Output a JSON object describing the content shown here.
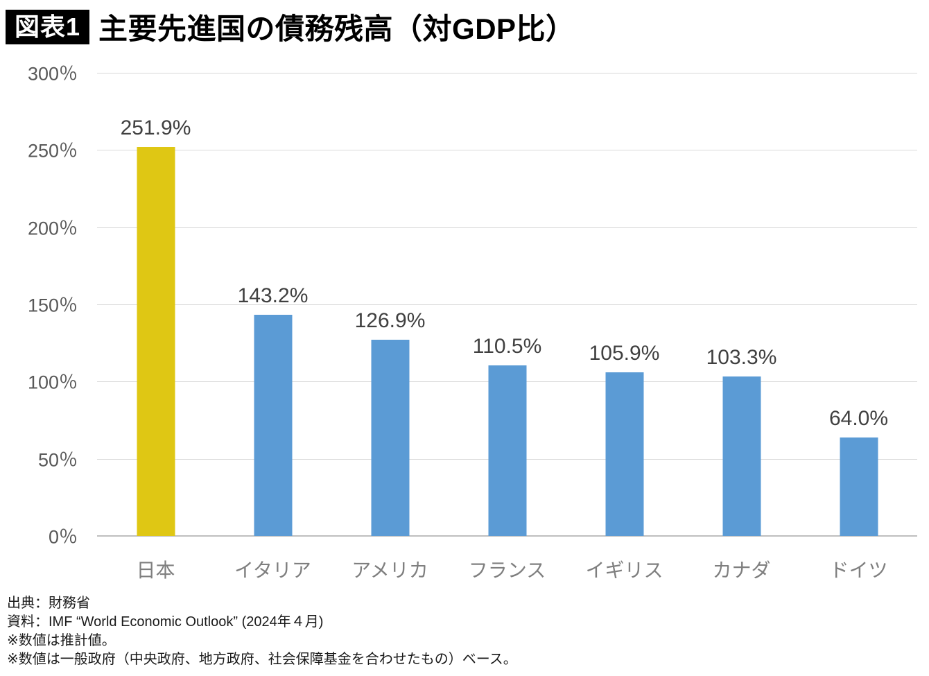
{
  "header": {
    "badge": "図表1",
    "title": "主要先進国の債務残高（対GDP比）"
  },
  "chart_data": {
    "type": "bar",
    "title": "主要先進国の債務残高（対GDP比）",
    "categories": [
      "日本",
      "イタリア",
      "アメリカ",
      "フランス",
      "イギリス",
      "カナダ",
      "ドイツ"
    ],
    "values": [
      251.9,
      143.2,
      126.9,
      110.5,
      105.9,
      103.3,
      64.0
    ],
    "value_labels": [
      "251.9%",
      "143.2%",
      "126.9%",
      "110.5%",
      "105.9%",
      "103.3%",
      "64.0%"
    ],
    "bar_colors": [
      "#DFC714",
      "#5B9BD5",
      "#5B9BD5",
      "#5B9BD5",
      "#5B9BD5",
      "#5B9BD5",
      "#5B9BD5"
    ],
    "highlight_color": "#DFC714",
    "default_color": "#5B9BD5",
    "xlabel": "",
    "ylabel": "",
    "ylim": [
      0,
      300
    ],
    "tick_step": 50,
    "y_tick_labels_top_to_bottom": [
      "300％",
      "250％",
      "200％",
      "150％",
      "100％",
      "50％",
      "0％"
    ],
    "grid": true,
    "grid_color": "#D9D9D9",
    "axis_line_color": "#BFBFBF",
    "legend": "none"
  },
  "footer": {
    "lines": [
      "出典：財務省",
      "資料：IMF “World Economic Outlook” (2024年４月)",
      "※数値は推計値。",
      "※数値は一般政府（中央政府、地方政府、社会保障基金を合わせたもの）ベース。"
    ]
  }
}
